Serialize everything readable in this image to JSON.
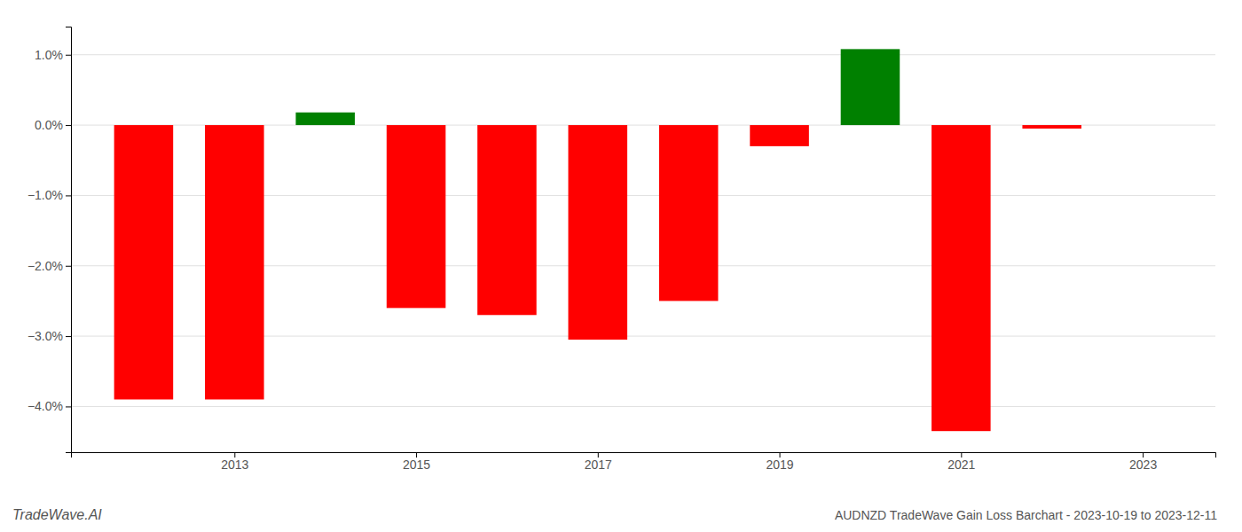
{
  "chart_data": {
    "type": "bar",
    "title": "AUDNZD TradeWave Gain Loss Barchart - 2023-10-19 to 2023-12-11",
    "annotations": [
      "TradeWave.AI"
    ],
    "x": [
      2012,
      2013,
      2014,
      2015,
      2016,
      2017,
      2018,
      2019,
      2020,
      2021,
      2022
    ],
    "values": [
      -3.9,
      -3.9,
      0.18,
      -2.6,
      -2.7,
      -3.05,
      -2.5,
      -0.3,
      1.08,
      -4.35,
      -0.05
    ],
    "colors": [
      "#ff0000",
      "#ff0000",
      "#008000",
      "#ff0000",
      "#ff0000",
      "#ff0000",
      "#ff0000",
      "#ff0000",
      "#008000",
      "#ff0000",
      "#ff0000"
    ],
    "xlim": [
      2011.2,
      2023.8
    ],
    "xticks": [
      2013,
      2015,
      2017,
      2019,
      2021,
      2023
    ],
    "ylim": [
      -4.65,
      1.4
    ],
    "yticks": [
      {
        "value": -4.0,
        "label": "−4.0%"
      },
      {
        "value": -3.0,
        "label": "−3.0%"
      },
      {
        "value": -2.0,
        "label": "−2.0%"
      },
      {
        "value": -1.0,
        "label": "−1.0%"
      },
      {
        "value": 0.0,
        "label": "0.0%"
      },
      {
        "value": 1.0,
        "label": "1.0%"
      }
    ],
    "grid": true
  }
}
